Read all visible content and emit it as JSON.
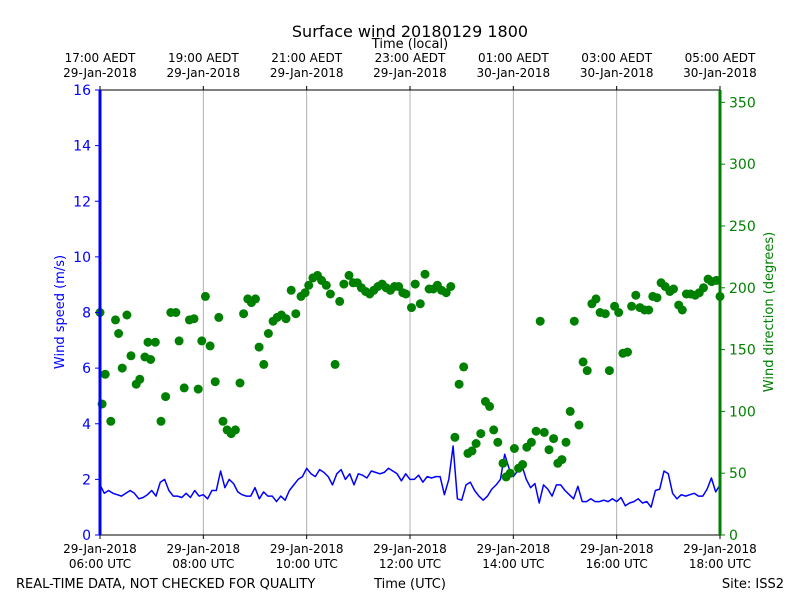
{
  "chart_data": {
    "type": "scatter",
    "title": "Surface wind 20180129 1800",
    "top_axis_title": "Time (local)",
    "xlabel": "Time (UTC)",
    "ylabel_left": "Wind speed (m/s)",
    "ylabel_right": "Wind direction (degrees)",
    "footer_left": "REAL-TIME DATA, NOT CHECKED FOR QUALITY",
    "footer_right": "Site: ISS2",
    "x_range_hours": [
      6.0,
      18.0
    ],
    "y_left_range": [
      0,
      16
    ],
    "y_left_ticks": [
      "0",
      "2",
      "4",
      "6",
      "8",
      "10",
      "12",
      "14",
      "16"
    ],
    "y_right_range": [
      0,
      360
    ],
    "y_right_ticks": [
      "0",
      "50",
      "100",
      "150",
      "200",
      "250",
      "300",
      "350"
    ],
    "grid": "vertical",
    "colors": {
      "speed": "#0000ff",
      "direction": "#008000",
      "grid": "#b0b0b0"
    },
    "bottom_ticks": [
      {
        "hour": 6,
        "date": "29-Jan-2018",
        "time": "06:00 UTC"
      },
      {
        "hour": 8,
        "date": "29-Jan-2018",
        "time": "08:00 UTC"
      },
      {
        "hour": 10,
        "date": "29-Jan-2018",
        "time": "10:00 UTC"
      },
      {
        "hour": 12,
        "date": "29-Jan-2018",
        "time": "12:00 UTC"
      },
      {
        "hour": 14,
        "date": "29-Jan-2018",
        "time": "14:00 UTC"
      },
      {
        "hour": 16,
        "date": "29-Jan-2018",
        "time": "16:00 UTC"
      },
      {
        "hour": 18,
        "date": "29-Jan-2018",
        "time": "18:00 UTC"
      }
    ],
    "top_ticks": [
      {
        "hour": 6,
        "time": "17:00 AEDT",
        "date": "29-Jan-2018"
      },
      {
        "hour": 8,
        "time": "19:00 AEDT",
        "date": "29-Jan-2018"
      },
      {
        "hour": 10,
        "time": "21:00 AEDT",
        "date": "29-Jan-2018"
      },
      {
        "hour": 12,
        "time": "23:00 AEDT",
        "date": "29-Jan-2018"
      },
      {
        "hour": 14,
        "time": "01:00 AEDT",
        "date": "30-Jan-2018"
      },
      {
        "hour": 16,
        "time": "03:00 AEDT",
        "date": "30-Jan-2018"
      },
      {
        "hour": 18,
        "time": "05:00 AEDT",
        "date": "30-Jan-2018"
      }
    ],
    "series": [
      {
        "name": "Wind speed (m/s)",
        "kind": "line",
        "axis": "left",
        "interval_hours": 0.0833,
        "values": [
          1.8,
          1.5,
          1.6,
          1.5,
          1.45,
          1.4,
          1.5,
          1.6,
          1.5,
          1.3,
          1.35,
          1.45,
          1.6,
          1.4,
          1.9,
          2.0,
          1.6,
          1.4,
          1.4,
          1.35,
          1.5,
          1.35,
          1.6,
          1.4,
          1.45,
          1.3,
          1.6,
          1.6,
          2.3,
          1.7,
          2.0,
          1.85,
          1.55,
          1.45,
          1.4,
          1.4,
          1.7,
          1.3,
          1.55,
          1.4,
          1.4,
          1.2,
          1.4,
          1.25,
          1.6,
          1.8,
          2.0,
          2.1,
          2.4,
          2.2,
          2.1,
          2.35,
          2.25,
          2.1,
          1.8,
          2.2,
          2.35,
          2.0,
          2.2,
          1.8,
          2.2,
          2.15,
          2.05,
          2.3,
          2.25,
          2.2,
          2.25,
          2.4,
          2.3,
          2.2,
          1.95,
          2.2,
          2.0,
          2.0,
          2.15,
          1.9,
          2.1,
          2.05,
          2.1,
          2.1,
          1.45,
          2.0,
          3.2,
          1.3,
          1.25,
          1.8,
          1.9,
          1.6,
          1.4,
          1.25,
          1.4,
          1.65,
          1.8,
          2.0,
          2.9,
          2.4,
          2.1,
          2.3,
          2.5,
          2.0,
          1.7,
          1.85,
          1.15,
          1.8,
          1.65,
          1.4,
          1.8,
          1.8,
          1.6,
          1.45,
          1.3,
          1.75,
          1.2,
          1.2,
          1.3,
          1.2,
          1.2,
          1.25,
          1.2,
          1.3,
          1.2,
          1.35,
          1.05,
          1.15,
          1.2,
          1.3,
          1.15,
          1.2,
          1.0,
          1.6,
          1.65,
          2.3,
          2.2,
          1.5,
          1.3,
          1.45,
          1.4,
          1.45,
          1.5,
          1.4,
          1.4,
          1.65,
          2.05,
          1.55,
          1.8
        ]
      },
      {
        "name": "Wind direction (degrees)",
        "kind": "scatter",
        "axis": "right",
        "points": [
          [
            6.0,
            180
          ],
          [
            6.04,
            106
          ],
          [
            6.1,
            130
          ],
          [
            6.21,
            92
          ],
          [
            6.3,
            174
          ],
          [
            6.36,
            163
          ],
          [
            6.43,
            135
          ],
          [
            6.52,
            178
          ],
          [
            6.6,
            145
          ],
          [
            6.7,
            122
          ],
          [
            6.77,
            126
          ],
          [
            6.87,
            144
          ],
          [
            6.93,
            156
          ],
          [
            6.98,
            142
          ],
          [
            7.07,
            156
          ],
          [
            7.18,
            92
          ],
          [
            7.27,
            112
          ],
          [
            7.37,
            180
          ],
          [
            7.47,
            180
          ],
          [
            7.53,
            157
          ],
          [
            7.63,
            119
          ],
          [
            7.73,
            174
          ],
          [
            7.82,
            175
          ],
          [
            7.9,
            118
          ],
          [
            7.97,
            157
          ],
          [
            8.04,
            193
          ],
          [
            8.13,
            153
          ],
          [
            8.23,
            124
          ],
          [
            8.3,
            176
          ],
          [
            8.38,
            92
          ],
          [
            8.46,
            85
          ],
          [
            8.54,
            82
          ],
          [
            8.62,
            85
          ],
          [
            8.71,
            123
          ],
          [
            8.78,
            179
          ],
          [
            8.86,
            191
          ],
          [
            8.93,
            188
          ],
          [
            9.01,
            191
          ],
          [
            9.08,
            152
          ],
          [
            9.17,
            138
          ],
          [
            9.26,
            163
          ],
          [
            9.35,
            173
          ],
          [
            9.43,
            176
          ],
          [
            9.51,
            178
          ],
          [
            9.6,
            175
          ],
          [
            9.7,
            198
          ],
          [
            9.79,
            179
          ],
          [
            9.89,
            193
          ],
          [
            9.97,
            196
          ],
          [
            10.04,
            202
          ],
          [
            10.12,
            208
          ],
          [
            10.21,
            210
          ],
          [
            10.29,
            206
          ],
          [
            10.38,
            202
          ],
          [
            10.46,
            195
          ],
          [
            10.55,
            138
          ],
          [
            10.64,
            189
          ],
          [
            10.72,
            203
          ],
          [
            10.82,
            210
          ],
          [
            10.9,
            204
          ],
          [
            10.98,
            204
          ],
          [
            11.06,
            200
          ],
          [
            11.14,
            197
          ],
          [
            11.22,
            195
          ],
          [
            11.3,
            198
          ],
          [
            11.38,
            201
          ],
          [
            11.46,
            203
          ],
          [
            11.54,
            200
          ],
          [
            11.62,
            198
          ],
          [
            11.7,
            201
          ],
          [
            11.78,
            201
          ],
          [
            11.86,
            196
          ],
          [
            11.92,
            195
          ],
          [
            12.03,
            184
          ],
          [
            12.1,
            203
          ],
          [
            12.2,
            187
          ],
          [
            12.29,
            211
          ],
          [
            12.37,
            199
          ],
          [
            12.45,
            199
          ],
          [
            12.53,
            202
          ],
          [
            12.61,
            198
          ],
          [
            12.7,
            196
          ],
          [
            12.79,
            201
          ],
          [
            12.87,
            79
          ],
          [
            12.95,
            122
          ],
          [
            13.04,
            136
          ],
          [
            13.12,
            66
          ],
          [
            13.2,
            68
          ],
          [
            13.28,
            74
          ],
          [
            13.37,
            82
          ],
          [
            13.46,
            108
          ],
          [
            13.54,
            104
          ],
          [
            13.62,
            85
          ],
          [
            13.7,
            75
          ],
          [
            13.8,
            58
          ],
          [
            13.86,
            47
          ],
          [
            13.94,
            50
          ],
          [
            14.02,
            70
          ],
          [
            14.1,
            54
          ],
          [
            14.18,
            57
          ],
          [
            14.26,
            71
          ],
          [
            14.35,
            75
          ],
          [
            14.44,
            84
          ],
          [
            14.52,
            173
          ],
          [
            14.6,
            83
          ],
          [
            14.69,
            69
          ],
          [
            14.78,
            78
          ],
          [
            14.86,
            58
          ],
          [
            14.94,
            61
          ],
          [
            15.02,
            75
          ],
          [
            15.1,
            100
          ],
          [
            15.18,
            173
          ],
          [
            15.27,
            89
          ],
          [
            15.35,
            140
          ],
          [
            15.43,
            133
          ],
          [
            15.52,
            187
          ],
          [
            15.6,
            191
          ],
          [
            15.68,
            180
          ],
          [
            15.78,
            179
          ],
          [
            15.86,
            133
          ],
          [
            15.96,
            185
          ],
          [
            16.04,
            180
          ],
          [
            16.12,
            147
          ],
          [
            16.21,
            148
          ],
          [
            16.29,
            185
          ],
          [
            16.37,
            194
          ],
          [
            16.45,
            184
          ],
          [
            16.54,
            182
          ],
          [
            16.62,
            182
          ],
          [
            16.7,
            193
          ],
          [
            16.78,
            192
          ],
          [
            16.86,
            204
          ],
          [
            16.94,
            201
          ],
          [
            17.03,
            197
          ],
          [
            17.1,
            199
          ],
          [
            17.2,
            186
          ],
          [
            17.27,
            182
          ],
          [
            17.35,
            195
          ],
          [
            17.43,
            195
          ],
          [
            17.52,
            194
          ],
          [
            17.6,
            196
          ],
          [
            17.68,
            200
          ],
          [
            17.77,
            207
          ],
          [
            17.84,
            205
          ],
          [
            17.93,
            206
          ],
          [
            18.0,
            193
          ]
        ]
      }
    ]
  }
}
